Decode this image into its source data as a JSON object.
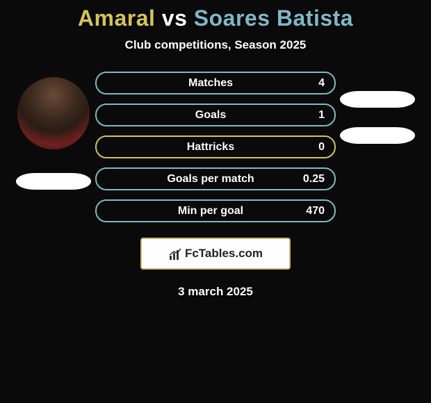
{
  "title": {
    "player1": "Amaral",
    "vs": " vs ",
    "player2": "Soares Batista",
    "color_p1": "#d6c25a",
    "color_vs": "#ffffff",
    "color_p2": "#7fb8c9"
  },
  "subtitle": "Club competitions, Season 2025",
  "stats": [
    {
      "label": "Matches",
      "value": "4",
      "border": "#7fb8c9"
    },
    {
      "label": "Goals",
      "value": "1",
      "border": "#7fb8c9"
    },
    {
      "label": "Hattricks",
      "value": "0",
      "border": "#d6c25a"
    },
    {
      "label": "Goals per match",
      "value": "0.25",
      "border": "#7fb8c9"
    },
    {
      "label": "Min per goal",
      "value": "470",
      "border": "#7fb8c9"
    }
  ],
  "left": {
    "has_avatar": true,
    "pill_color": "#ffffff"
  },
  "right": {
    "has_avatar": false,
    "pill_color": "#ffffff",
    "pill_count": 2
  },
  "brand": {
    "text": "FcTables.com",
    "border_color": "#c9b766",
    "icon_color": "#333333"
  },
  "date": "3 march 2025",
  "background": "#0a0a0a"
}
